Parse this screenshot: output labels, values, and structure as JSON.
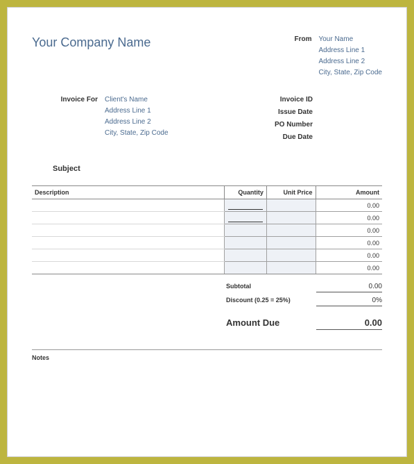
{
  "styling": {
    "outer_border_color": "#bdb53f",
    "page_bg": "#ffffff",
    "accent_text_color": "#4a6a8f",
    "body_text_color": "#333333",
    "row_fill_color": "#eef1f6",
    "border_color": "#888888",
    "font_family": "Arial, Helvetica, sans-serif",
    "company_name_fontsize_pt": 14,
    "label_fontsize_pt": 8,
    "amount_due_fontsize_pt": 10
  },
  "company": {
    "name": "Your Company Name"
  },
  "from": {
    "label": "From",
    "lines": [
      "Your Name",
      "Address Line 1",
      "Address Line 2",
      "City, State, Zip Code"
    ]
  },
  "invoice_for": {
    "label": "Invoice For",
    "lines": [
      "Client's Name",
      "Address Line 1",
      "Address Line 2",
      "City, State, Zip Code"
    ]
  },
  "meta": {
    "invoice_id": {
      "label": "Invoice ID",
      "value": ""
    },
    "issue_date": {
      "label": "Issue Date",
      "value": ""
    },
    "po_number": {
      "label": "PO Number",
      "value": ""
    },
    "due_date": {
      "label": "Due Date",
      "value": ""
    }
  },
  "subject": {
    "label": "Subject"
  },
  "items": {
    "columns": {
      "description": "Description",
      "quantity": "Quantity",
      "unit_price": "Unit Price",
      "amount": "Amount"
    },
    "rows": [
      {
        "description": "",
        "quantity": "",
        "unit_price": "",
        "amount": "0.00",
        "qty_line": true,
        "up_line": false
      },
      {
        "description": "",
        "quantity": "",
        "unit_price": "",
        "amount": "0.00",
        "qty_line": true,
        "up_line": false
      },
      {
        "description": "",
        "quantity": "",
        "unit_price": "",
        "amount": "0.00",
        "qty_line": false,
        "up_line": false
      },
      {
        "description": "",
        "quantity": "",
        "unit_price": "",
        "amount": "0.00",
        "qty_line": false,
        "up_line": false
      },
      {
        "description": "",
        "quantity": "",
        "unit_price": "",
        "amount": "0.00",
        "qty_line": false,
        "up_line": false
      },
      {
        "description": "",
        "quantity": "",
        "unit_price": "",
        "amount": "0.00",
        "qty_line": false,
        "up_line": false
      }
    ]
  },
  "totals": {
    "subtotal": {
      "label": "Subtotal",
      "value": "0.00"
    },
    "discount": {
      "label": "Discount (0.25 = 25%)",
      "value": "0%"
    },
    "amount_due": {
      "label": "Amount Due",
      "value": "0.00"
    }
  },
  "notes": {
    "label": "Notes"
  }
}
